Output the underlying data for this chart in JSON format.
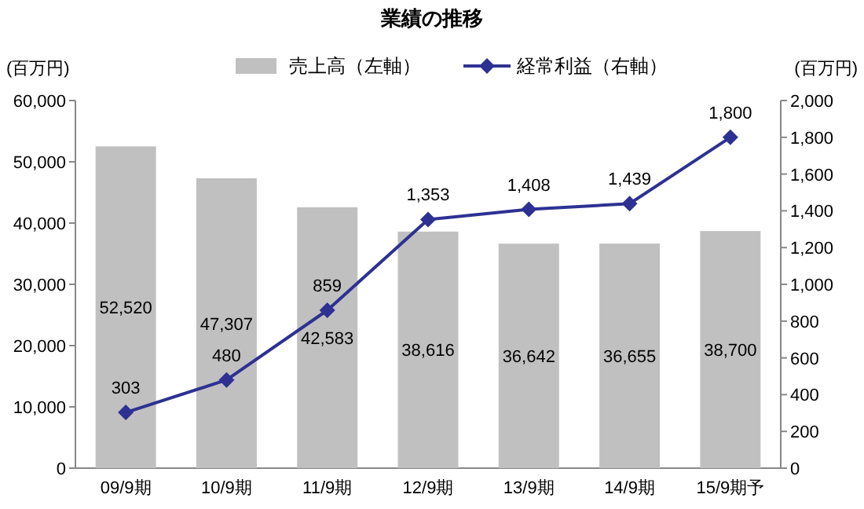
{
  "chart_data": {
    "type": "bar",
    "title": "業績の推移",
    "ylabel": "(百万円)",
    "y2label": "(百万円)",
    "categories": [
      "09/9期",
      "10/9期",
      "11/9期",
      "12/9期",
      "13/9期",
      "14/9期",
      "15/9期予"
    ],
    "series": [
      {
        "name": "売上高（左軸）",
        "color": "#c0c0c0",
        "values": [
          52520,
          47307,
          42583,
          38616,
          36642,
          36655,
          38700
        ],
        "value_labels": [
          "52,520",
          "47,307",
          "42,583",
          "38,616",
          "36,642",
          "36,655",
          "38,700"
        ]
      },
      {
        "name": "経常利益（右軸）",
        "type": "line",
        "axis": "y2",
        "color": "#2e3192",
        "marker": "diamond",
        "values": [
          303,
          480,
          859,
          1353,
          1408,
          1439,
          1800
        ],
        "value_labels": [
          "303",
          "480",
          "859",
          "1,353",
          "1,408",
          "1,439",
          "1,800"
        ]
      }
    ],
    "ylim": [
      0,
      60000
    ],
    "yticks": [
      0,
      {
        "value": 10000,
        "label": "10,000"
      },
      {
        "value": 20000,
        "label": "20,000"
      },
      {
        "value": 30000,
        "label": "30,000"
      },
      {
        "value": 40000,
        "label": "40,000"
      },
      {
        "value": 50000,
        "label": "50,000"
      },
      {
        "value": 60000,
        "label": "60,000"
      }
    ],
    "y2lim": [
      0,
      2000
    ],
    "y2ticks": [
      0,
      200,
      400,
      600,
      800,
      {
        "value": 1000,
        "label": "1,000"
      },
      {
        "value": 1200,
        "label": "1,200"
      },
      {
        "value": 1400,
        "label": "1,400"
      },
      {
        "value": 1600,
        "label": "1,600"
      },
      {
        "value": 1800,
        "label": "1,800"
      },
      {
        "value": 2000,
        "label": "2,000"
      }
    ],
    "legend": "top",
    "grid": false
  }
}
